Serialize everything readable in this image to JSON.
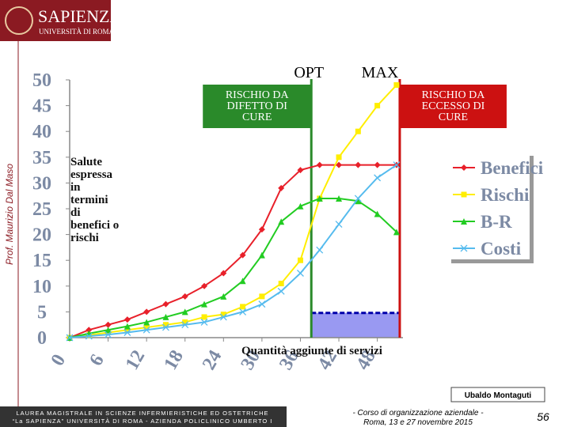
{
  "header": {
    "logo_title": "SAPIENZA",
    "logo_subtitle": "UNIVERSITÀ DI ROMA"
  },
  "sidebar": {
    "author": "Prof. Maurizio Dal Maso"
  },
  "chart_data": {
    "type": "line",
    "y_label": [
      "Salute",
      "espressa",
      "in",
      "termini",
      "di",
      "benefici o",
      "rischi"
    ],
    "x_label": "Quantità aggiunte di servizi",
    "x": [
      0,
      3,
      6,
      9,
      12,
      15,
      18,
      21,
      24,
      27,
      30,
      33,
      36,
      39,
      42,
      45,
      48,
      51
    ],
    "xlim": [
      0,
      52
    ],
    "xticks": [
      0,
      6,
      12,
      18,
      24,
      30,
      36,
      42,
      48
    ],
    "ylim": [
      0,
      50
    ],
    "yticks": [
      0,
      5,
      10,
      15,
      20,
      25,
      30,
      35,
      40,
      45,
      50
    ],
    "legend": "right",
    "series": [
      {
        "name": "Benefici",
        "color": "#e8202a",
        "marker": "diamond",
        "values": [
          0,
          1.5,
          2.5,
          3.5,
          5,
          6.5,
          8,
          10,
          12.5,
          16,
          21,
          29,
          32.5,
          33.5,
          33.5,
          33.5,
          33.5,
          33.5
        ]
      },
      {
        "name": "Rischi",
        "color": "#ffee00",
        "marker": "square",
        "values": [
          0,
          0.5,
          1,
          1.5,
          2,
          2.5,
          3,
          4,
          4.5,
          6,
          8,
          10.5,
          15,
          27,
          35,
          40,
          45,
          49
        ]
      },
      {
        "name": "B-R",
        "color": "#22cc22",
        "marker": "triangle",
        "values": [
          0,
          0.8,
          1.5,
          2.2,
          3,
          4,
          5,
          6.5,
          8,
          11,
          16,
          22.5,
          25.5,
          27,
          27,
          26.5,
          24,
          20.5
        ]
      },
      {
        "name": "Costi",
        "color": "#55bbee",
        "marker": "x",
        "values": [
          0,
          0.3,
          0.6,
          1,
          1.5,
          2,
          2.5,
          3,
          4,
          5,
          6.5,
          9,
          12.5,
          17,
          22,
          27,
          31,
          33.5
        ]
      }
    ],
    "markers": [
      {
        "label": "OPT",
        "x": 37.7,
        "color": "#2a8a2a",
        "box": [
          "RISCHIO DA",
          "DIFETTO DI",
          "CURE"
        ]
      },
      {
        "label": "MAX",
        "x": 51.5,
        "color": "#cc1111",
        "box": [
          "RISCHIO DA",
          "ECCESSO DI",
          "CURE"
        ]
      }
    ],
    "shaded_region": {
      "x": [
        37.7,
        51.5
      ],
      "value": 4.8,
      "color": "#7777ee"
    }
  },
  "footer": {
    "signature": "Ubaldo Montaguti",
    "program": [
      "LAUREA MAGISTRALE IN SCIENZE INFERMIERISTICHE ED OSTETRICHE",
      "“La SAPIENZA” UNIVERSITÀ DI ROMA - AZIENDA POLICLINICO UMBERTO I"
    ],
    "course": [
      "- Corso di organizzazione aziendale -",
      "Roma, 13 e 27 novembre 2015"
    ],
    "page": "56"
  }
}
